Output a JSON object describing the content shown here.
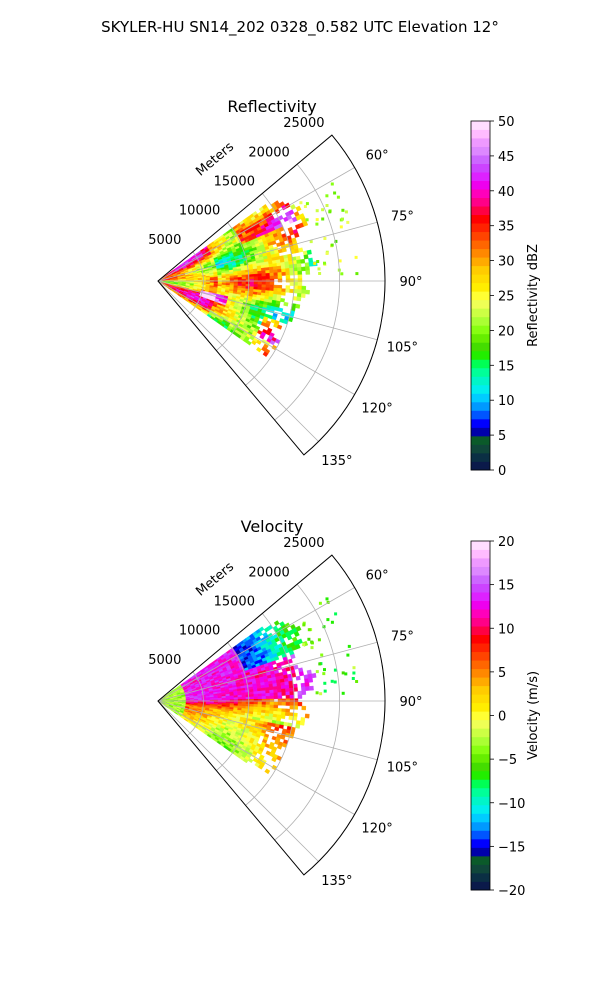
{
  "title": "SKYLER-HU  SN14_202  0328_0.582 UTC Elevation 12°",
  "panels": [
    {
      "id": "reflectivity",
      "title": "Reflectivity",
      "radial_label": "Meters",
      "colorbar": {
        "label": "Reflectivity dBZ",
        "min": 0,
        "max": 50,
        "ticks": [
          "0",
          "5",
          "10",
          "15",
          "20",
          "25",
          "30",
          "35",
          "40",
          "45",
          "50"
        ],
        "colors": [
          "#0b1a4a",
          "#0b2f44",
          "#10463a",
          "#0b5a2a",
          "#0000aa",
          "#0000ff",
          "#0055ff",
          "#0099ff",
          "#00ccff",
          "#00eeee",
          "#00f5c8",
          "#00ff99",
          "#00ff55",
          "#22ee00",
          "#44dd00",
          "#66ee00",
          "#88ff11",
          "#aaff33",
          "#ccff44",
          "#eeff55",
          "#ffff33",
          "#ffee00",
          "#ffdd00",
          "#ffcc00",
          "#ffaa00",
          "#ff8800",
          "#ff6600",
          "#ff4400",
          "#ff2200",
          "#ff0000",
          "#ff0044",
          "#ff0088",
          "#ff00bb",
          "#ee00ee",
          "#dd22ff",
          "#cc44ff",
          "#cc66ff",
          "#dd88ff",
          "#ee99ff",
          "#ffbbff",
          "#ffddff"
        ]
      }
    },
    {
      "id": "velocity",
      "title": "Velocity",
      "radial_label": "Meters",
      "colorbar": {
        "label": "Velocity (m/s)",
        "min": -20,
        "max": 20,
        "ticks": [
          "−20",
          "−15",
          "−10",
          "−5",
          "0",
          "5",
          "10",
          "15",
          "20"
        ],
        "colors": [
          "#0b1a4a",
          "#0b2f44",
          "#10463a",
          "#0b5a2a",
          "#0000aa",
          "#0000ff",
          "#0055ff",
          "#0099ff",
          "#00ccff",
          "#00eeee",
          "#00f5c8",
          "#00ff99",
          "#00ff55",
          "#22ee00",
          "#44dd00",
          "#66ee00",
          "#88ff11",
          "#aaff33",
          "#ccff44",
          "#eeff55",
          "#ffff33",
          "#ffee00",
          "#ffdd00",
          "#ffcc00",
          "#ffaa00",
          "#ff8800",
          "#ff6600",
          "#ff4400",
          "#ff2200",
          "#ff0000",
          "#ff0044",
          "#ff0088",
          "#ff00bb",
          "#ee00ee",
          "#dd22ff",
          "#cc44ff",
          "#cc66ff",
          "#dd88ff",
          "#ee99ff",
          "#ffbbff",
          "#ffddff"
        ]
      }
    }
  ],
  "chart_data": [
    {
      "type": "heatmap",
      "projection": "polar-sector",
      "title": "Reflectivity",
      "radial_label": "Meters",
      "radial_ticks": [
        5000,
        10000,
        15000,
        20000,
        25000
      ],
      "radial_max": 25000,
      "azimuth_range_deg": [
        50,
        140
      ],
      "azimuth_ticks": [
        "60°",
        "75°",
        "90°",
        "105°",
        "120°",
        "135°"
      ],
      "grid": true,
      "colorbar": {
        "label": "Reflectivity dBZ",
        "range": [
          0,
          50
        ]
      }
    },
    {
      "type": "heatmap",
      "projection": "polar-sector",
      "title": "Velocity",
      "radial_label": "Meters",
      "radial_ticks": [
        5000,
        10000,
        15000,
        20000,
        25000
      ],
      "radial_max": 25000,
      "azimuth_range_deg": [
        50,
        140
      ],
      "azimuth_ticks": [
        "60°",
        "75°",
        "90°",
        "105°",
        "120°",
        "135°"
      ],
      "grid": true,
      "colorbar": {
        "label": "Velocity (m/s)",
        "range": [
          -20,
          20
        ]
      }
    }
  ]
}
